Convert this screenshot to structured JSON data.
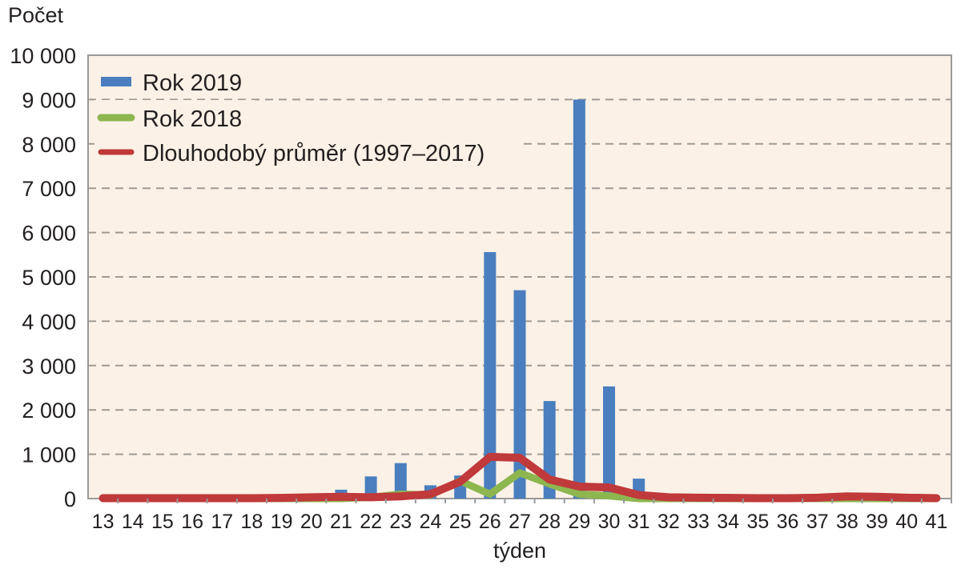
{
  "chart_data": {
    "type": "bar",
    "ylabel": "Počet",
    "xlabel": "týden",
    "ylim": [
      0,
      10000
    ],
    "yticks": [
      0,
      1000,
      2000,
      3000,
      4000,
      5000,
      6000,
      7000,
      8000,
      9000,
      10000
    ],
    "ytick_labels": [
      "0",
      "1 000",
      "2 000",
      "3 000",
      "4 000",
      "5 000",
      "6 000",
      "7 000",
      "8 000",
      "9 000",
      "10 000"
    ],
    "grid": true,
    "legend_position": "top-left",
    "categories": [
      "13",
      "14",
      "15",
      "16",
      "17",
      "18",
      "19",
      "20",
      "21",
      "22",
      "23",
      "24",
      "25",
      "26",
      "27",
      "28",
      "29",
      "30",
      "31",
      "32",
      "33",
      "34",
      "35",
      "36",
      "37",
      "38",
      "39",
      "40",
      "41"
    ],
    "series": [
      {
        "name": "Rok 2019",
        "type": "bar",
        "color": "#4a7ebf",
        "values": [
          0,
          0,
          0,
          0,
          0,
          0,
          0,
          0,
          200,
          500,
          800,
          300,
          520,
          5560,
          4700,
          2200,
          9000,
          2530,
          450,
          0,
          0,
          0,
          0,
          0,
          0,
          0,
          0,
          0,
          0
        ]
      },
      {
        "name": "Rok 2018",
        "type": "line",
        "color": "#8db64f",
        "values": [
          0,
          0,
          0,
          0,
          0,
          0,
          0,
          0,
          0,
          30,
          100,
          80,
          400,
          100,
          580,
          330,
          100,
          60,
          0,
          0,
          0,
          0,
          0,
          0,
          0,
          0,
          0,
          0,
          0
        ]
      },
      {
        "name": "Dlouhodobý průměr (1997–2017)",
        "type": "line",
        "color": "#c0393b",
        "values": [
          10,
          10,
          10,
          10,
          10,
          10,
          15,
          30,
          40,
          30,
          50,
          100,
          380,
          940,
          920,
          430,
          270,
          250,
          80,
          30,
          20,
          15,
          10,
          10,
          20,
          50,
          40,
          20,
          10
        ]
      }
    ]
  }
}
